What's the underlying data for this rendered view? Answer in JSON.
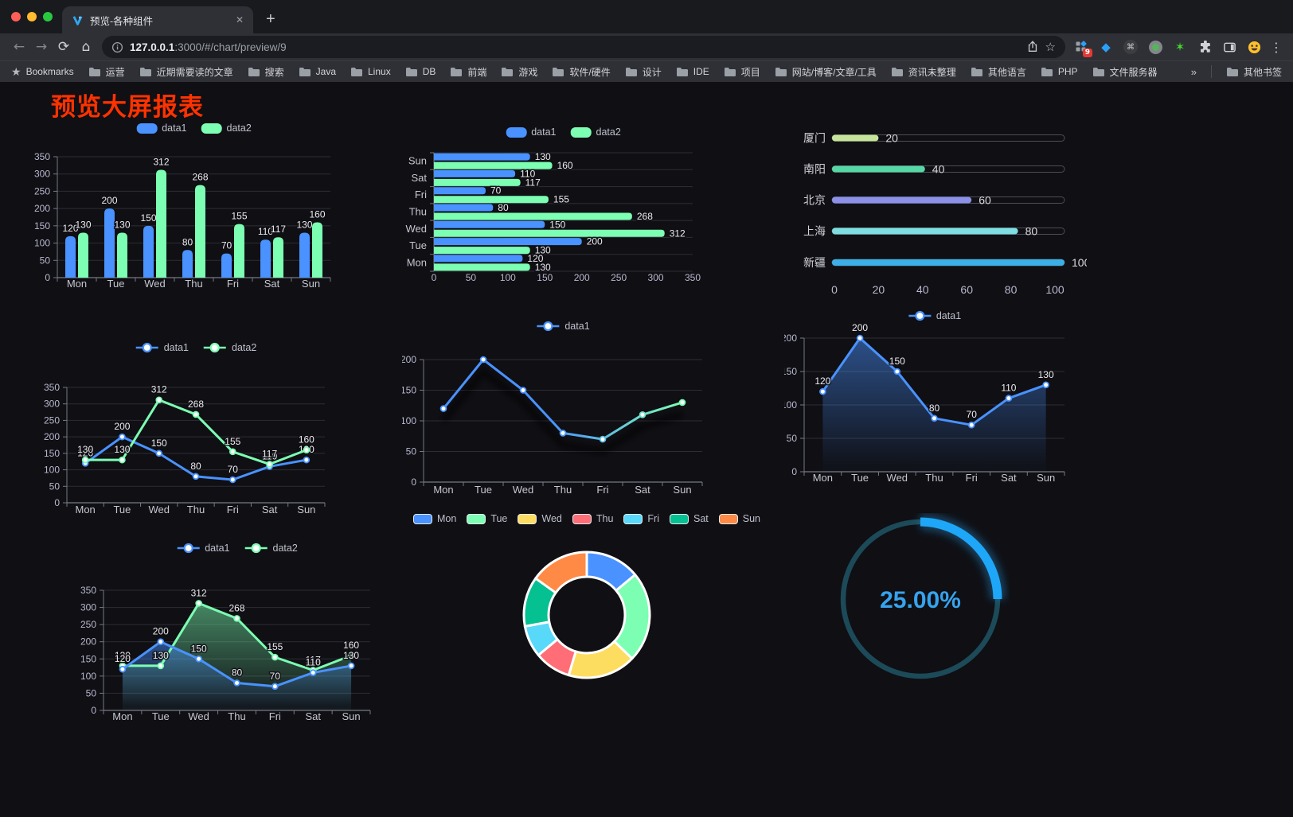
{
  "browser": {
    "tab_title": "预览-各种组件",
    "url_host": "127.0.0.1",
    "url_rest": ":3000/#/chart/preview/9",
    "icons": {
      "back": "←",
      "forward": "→",
      "reload": "⟳",
      "home": "⌂",
      "star_outline": "☆",
      "bookmarks_star": "★",
      "kebab": "⋮",
      "new_tab": "+",
      "close": "✕",
      "overflow": "»",
      "cmd": "⌘",
      "gem": "◆",
      "green_star": "✶"
    },
    "extension_badge": "9",
    "bookmarks_label": "Bookmarks",
    "bookmark_folders": [
      "运营",
      "近期需要读的文章",
      "搜索",
      "Java",
      "Linux",
      "DB",
      "前端",
      "游戏",
      "软件/硬件",
      "设计",
      "IDE",
      "项目",
      "网站/博客/文章/工具",
      "资讯未整理",
      "其他语言",
      "PHP",
      "文件服务器"
    ],
    "other_bookmarks": "其他书签"
  },
  "page": {
    "title": "预览大屏报表",
    "title_color": "#ff3200",
    "background": "#0f0f14"
  },
  "chart_data": [
    {
      "id": "bar-grouped",
      "type": "bar",
      "categories": [
        "Mon",
        "Tue",
        "Wed",
        "Thu",
        "Fri",
        "Sat",
        "Sun"
      ],
      "series": [
        {
          "name": "data1",
          "color": "#4992ff",
          "values": [
            120,
            200,
            150,
            80,
            70,
            110,
            130
          ]
        },
        {
          "name": "data2",
          "color": "#7cffb2",
          "values": [
            130,
            130,
            312,
            268,
            155,
            117,
            160
          ]
        }
      ],
      "ylim": [
        0,
        350
      ],
      "yticks": [
        0,
        50,
        100,
        150,
        200,
        250,
        300,
        350
      ],
      "legend_position": "top",
      "grid": true,
      "point_labels": true
    },
    {
      "id": "bar-horizontal",
      "type": "bar-horizontal",
      "categories": [
        "Mon",
        "Tue",
        "Wed",
        "Thu",
        "Fri",
        "Sat",
        "Sun"
      ],
      "category_order_on_axis": [
        "Sun",
        "Sat",
        "Fri",
        "Thu",
        "Wed",
        "Tue",
        "Mon"
      ],
      "series": [
        {
          "name": "data1",
          "color": "#4992ff",
          "values": [
            120,
            200,
            150,
            80,
            70,
            110,
            130
          ]
        },
        {
          "name": "data2",
          "color": "#7cffb2",
          "values": [
            130,
            130,
            312,
            268,
            155,
            117,
            160
          ]
        }
      ],
      "xlim": [
        0,
        350
      ],
      "xticks": [
        0,
        50,
        100,
        150,
        200,
        250,
        300,
        350
      ],
      "legend_position": "top",
      "grid": true,
      "point_labels": true
    },
    {
      "id": "city-progress",
      "type": "progress-bars",
      "rows": [
        {
          "label": "厦门",
          "value": 20,
          "color": "#c7e59a"
        },
        {
          "label": "南阳",
          "value": 40,
          "color": "#57d7a6"
        },
        {
          "label": "北京",
          "value": 60,
          "color": "#8d90e8"
        },
        {
          "label": "上海",
          "value": 80,
          "color": "#7edee2"
        },
        {
          "label": "新疆",
          "value": 100,
          "color": "#3cafe8"
        }
      ],
      "xlim": [
        0,
        100
      ],
      "xticks": [
        0,
        20,
        40,
        60,
        80,
        100
      ]
    },
    {
      "id": "line-two-series",
      "type": "line",
      "categories": [
        "Mon",
        "Tue",
        "Wed",
        "Thu",
        "Fri",
        "Sat",
        "Sun"
      ],
      "series": [
        {
          "name": "data1",
          "color": "#4992ff",
          "values": [
            120,
            200,
            150,
            80,
            70,
            110,
            130
          ]
        },
        {
          "name": "data2",
          "color": "#7cffb2",
          "values": [
            130,
            130,
            312,
            268,
            155,
            117,
            160
          ]
        }
      ],
      "ylim": [
        0,
        350
      ],
      "yticks": [
        0,
        50,
        100,
        150,
        200,
        250,
        300,
        350
      ],
      "legend_position": "top",
      "grid": true,
      "point_labels": true
    },
    {
      "id": "line-gradient",
      "type": "line",
      "categories": [
        "Mon",
        "Tue",
        "Wed",
        "Thu",
        "Fri",
        "Sat",
        "Sun"
      ],
      "series": [
        {
          "name": "data1",
          "gradient": [
            "#4992ff",
            "#7cffb2"
          ],
          "values": [
            120,
            200,
            150,
            80,
            70,
            110,
            130
          ]
        }
      ],
      "ylim": [
        0,
        200
      ],
      "yticks": [
        0,
        50,
        100,
        150,
        200
      ],
      "legend_position": "top",
      "grid": true,
      "point_labels": false
    },
    {
      "id": "area-single",
      "type": "area",
      "categories": [
        "Mon",
        "Tue",
        "Wed",
        "Thu",
        "Fri",
        "Sat",
        "Sun"
      ],
      "series": [
        {
          "name": "data1",
          "color": "#4992ff",
          "values": [
            120,
            200,
            150,
            80,
            70,
            110,
            130
          ]
        }
      ],
      "ylim": [
        0,
        200
      ],
      "yticks": [
        0,
        50,
        100,
        150,
        200
      ],
      "legend_position": "top",
      "grid": true,
      "point_labels": true
    },
    {
      "id": "area-two-series",
      "type": "area",
      "categories": [
        "Mon",
        "Tue",
        "Wed",
        "Thu",
        "Fri",
        "Sat",
        "Sun"
      ],
      "series": [
        {
          "name": "data1",
          "color": "#4992ff",
          "values": [
            120,
            200,
            150,
            80,
            70,
            110,
            130
          ]
        },
        {
          "name": "data2",
          "color": "#7cffb2",
          "values": [
            130,
            130,
            312,
            268,
            155,
            117,
            160
          ]
        }
      ],
      "ylim": [
        0,
        350
      ],
      "yticks": [
        0,
        50,
        100,
        150,
        200,
        250,
        300,
        350
      ],
      "legend_position": "top",
      "grid": true,
      "point_labels": true
    },
    {
      "id": "donut",
      "type": "pie",
      "inner_radius_ratio": 0.61,
      "legend_position": "top",
      "slices": [
        {
          "label": "Mon",
          "value": 120,
          "color": "#4992ff"
        },
        {
          "label": "Tue",
          "value": 200,
          "color": "#7cffb2"
        },
        {
          "label": "Wed",
          "value": 150,
          "color": "#fddd60"
        },
        {
          "label": "Thu",
          "value": 80,
          "color": "#ff6e76"
        },
        {
          "label": "Fri",
          "value": 70,
          "color": "#58d9f9"
        },
        {
          "label": "Sat",
          "value": 110,
          "color": "#05c091"
        },
        {
          "label": "Sun",
          "value": 130,
          "color": "#ff8a45"
        }
      ]
    },
    {
      "id": "gauge",
      "type": "gauge",
      "value": 25,
      "max": 100,
      "display": "25.00%",
      "color": "#1ea7f8",
      "track_color": "#1c4a58",
      "text_color": "#36a3ee"
    }
  ]
}
